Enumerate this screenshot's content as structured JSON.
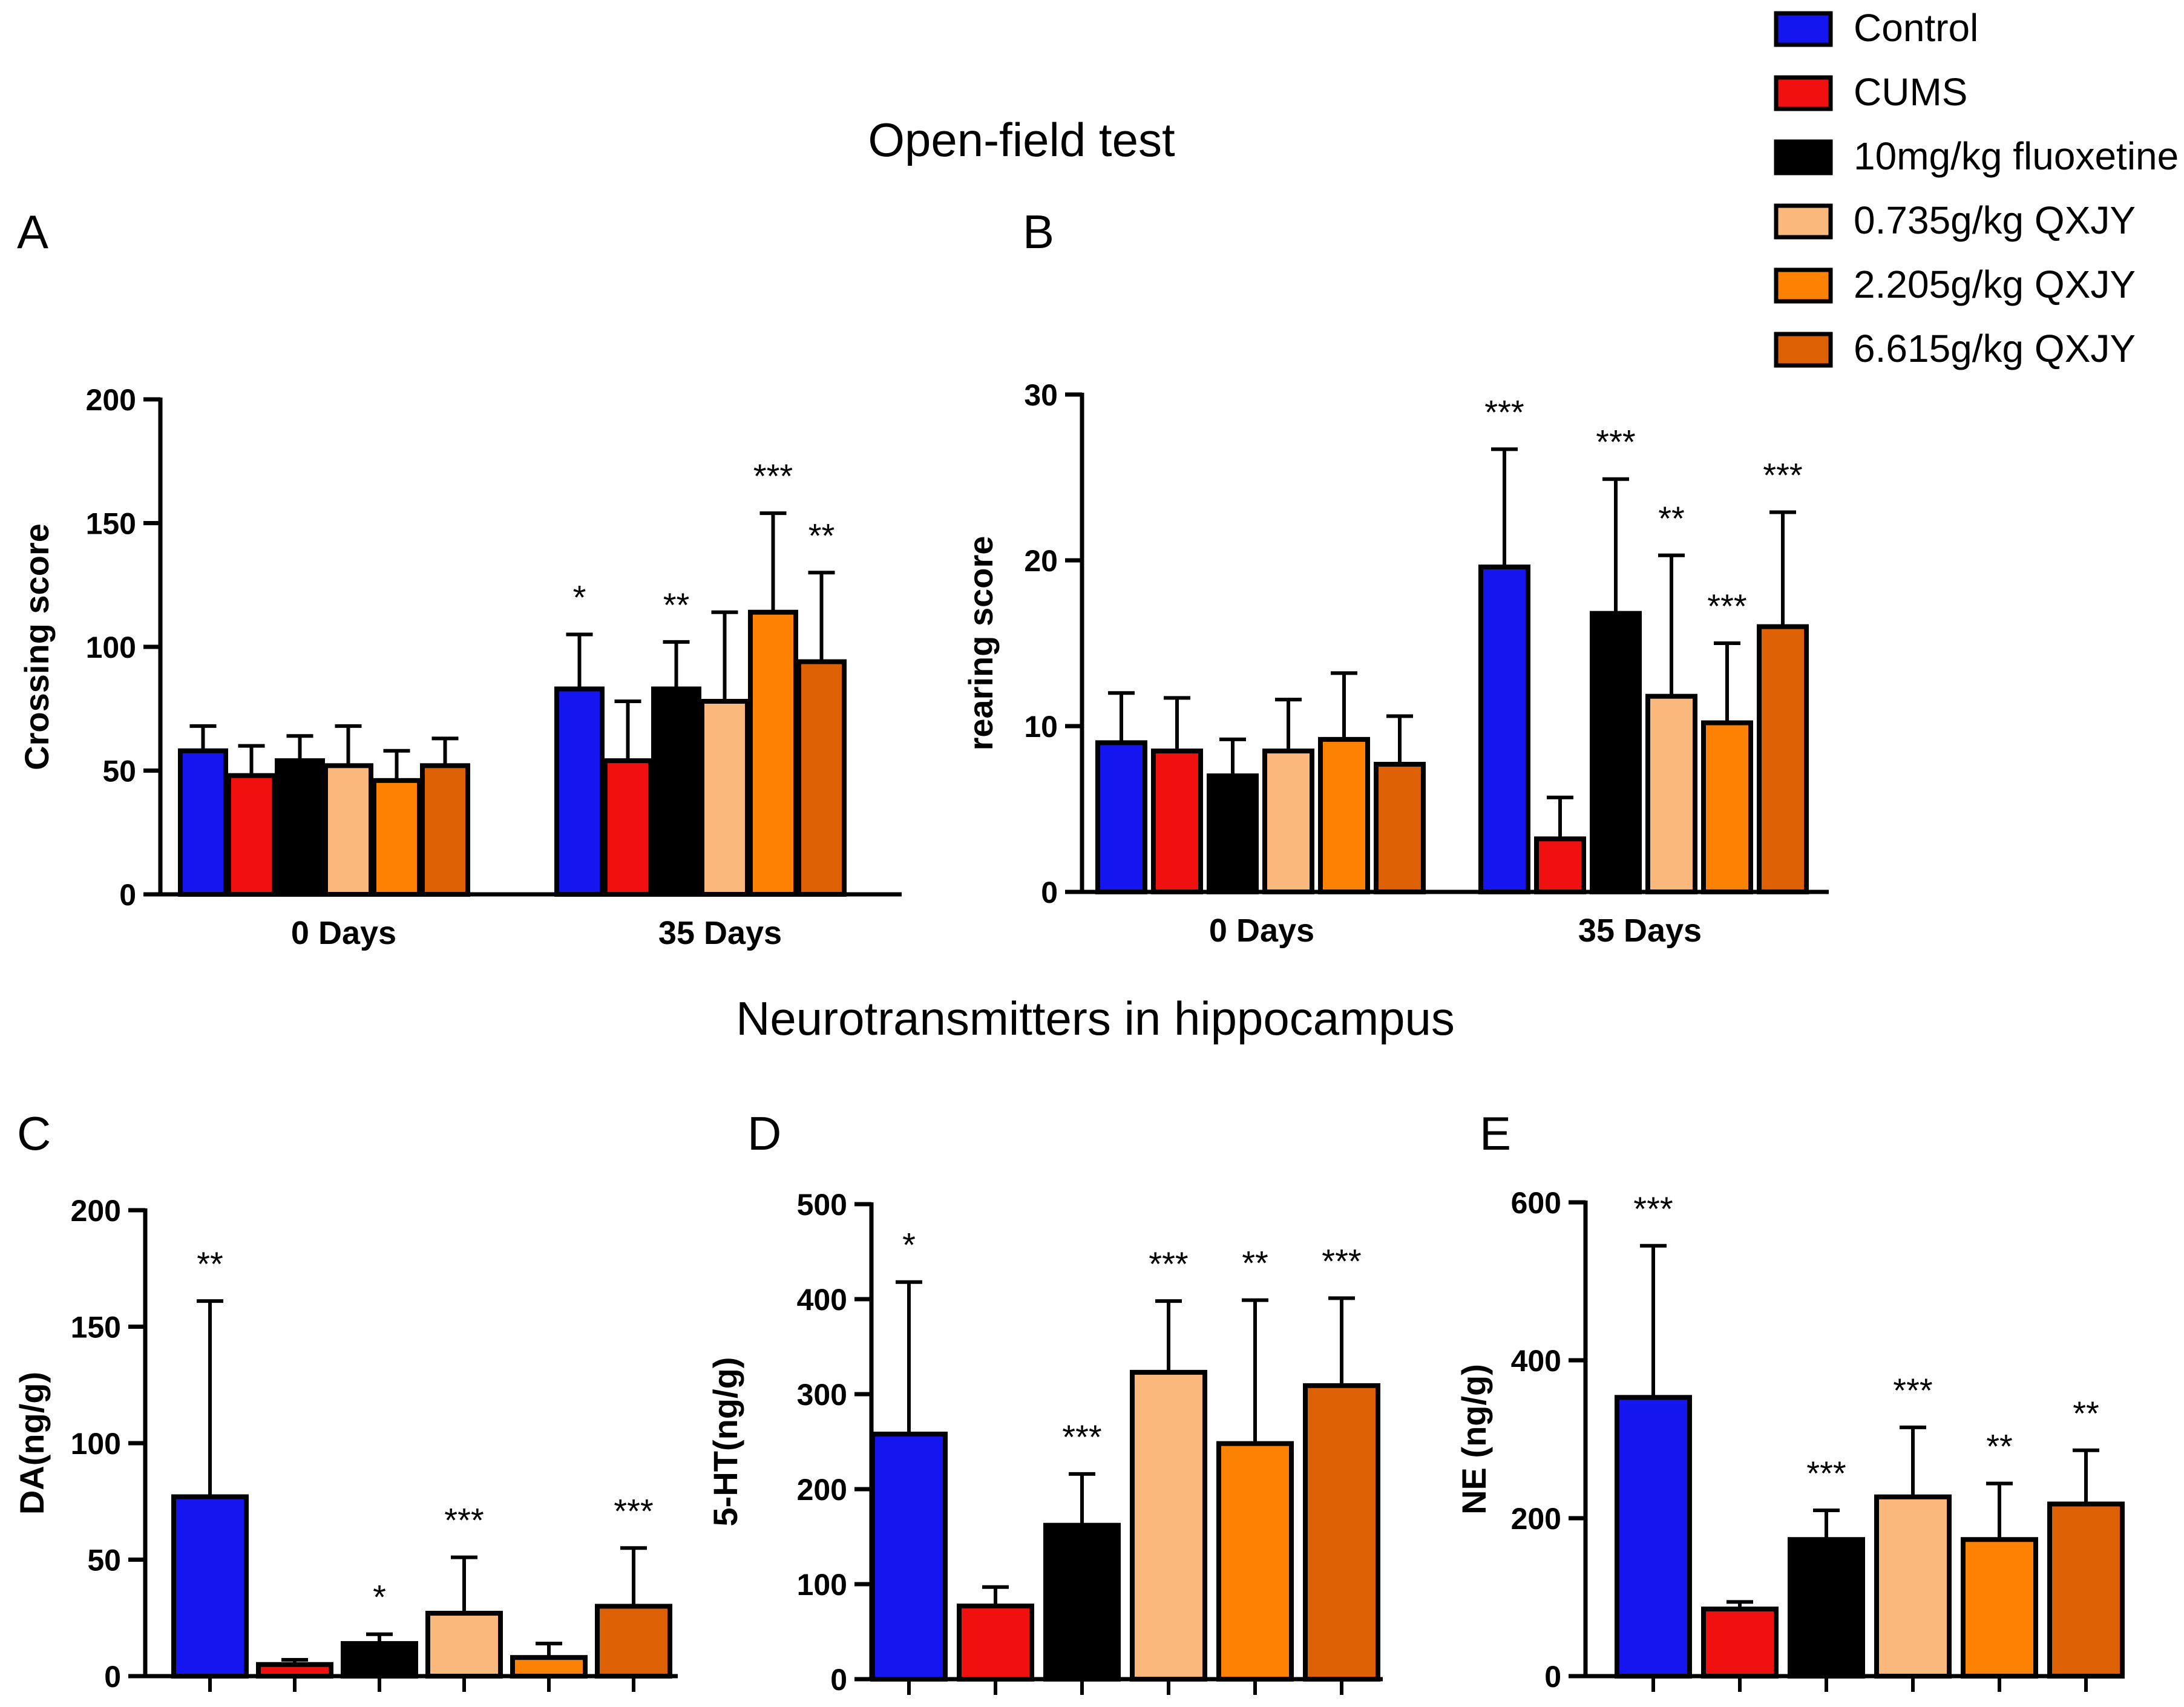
{
  "legend": {
    "entries": [
      {
        "name": "Control",
        "color": "#1515f0"
      },
      {
        "name": "CUMS",
        "color": "#f01010"
      },
      {
        "name": "10mg/kg fluoxetine",
        "color": "#000000"
      },
      {
        "name": "0.735g/kg QXJY",
        "color": "#fbb87c"
      },
      {
        "name": "2.205g/kg QXJY",
        "color": "#fd8204"
      },
      {
        "name": "6.615g/kg QXJY",
        "color": "#dd6004"
      }
    ]
  },
  "headings": {
    "open_field": "Open-field test",
    "neuro": "Neurotransmitters in hippocampus"
  },
  "chart_data": [
    {
      "id": "A",
      "panel_label": "A",
      "type": "bar",
      "ylabel": "Crossing score",
      "ylim": [
        0,
        200
      ],
      "yticks": [
        "0",
        "50",
        "100",
        "150",
        "200"
      ],
      "categories": [
        "0 Days",
        "35 Days"
      ],
      "series": [
        {
          "name": "Control",
          "values": [
            58,
            83
          ],
          "errors": [
            10,
            22
          ],
          "sig": [
            "",
            "*"
          ]
        },
        {
          "name": "CUMS",
          "values": [
            48,
            54
          ],
          "errors": [
            12,
            24
          ],
          "sig": [
            "",
            ""
          ]
        },
        {
          "name": "10mg/kg fluoxetine",
          "values": [
            54,
            83
          ],
          "errors": [
            10,
            19
          ],
          "sig": [
            "",
            "**"
          ]
        },
        {
          "name": "0.735g/kg QXJY",
          "values": [
            52,
            78
          ],
          "errors": [
            16,
            36
          ],
          "sig": [
            "",
            ""
          ]
        },
        {
          "name": "2.205g/kg QXJY",
          "values": [
            46,
            114
          ],
          "errors": [
            12,
            40
          ],
          "sig": [
            "",
            "***"
          ]
        },
        {
          "name": "6.615g/kg QXJY",
          "values": [
            52,
            94
          ],
          "errors": [
            11,
            36
          ],
          "sig": [
            "",
            "**"
          ]
        }
      ]
    },
    {
      "id": "B",
      "panel_label": "B",
      "type": "bar",
      "ylabel": "rearing score",
      "ylim": [
        0,
        30
      ],
      "yticks": [
        "0",
        "10",
        "20",
        "30"
      ],
      "categories": [
        "0 Days",
        "35 Days"
      ],
      "series": [
        {
          "name": "Control",
          "values": [
            9,
            19.6
          ],
          "errors": [
            3,
            7.1
          ],
          "sig": [
            "",
            "***"
          ]
        },
        {
          "name": "CUMS",
          "values": [
            8.5,
            3.2
          ],
          "errors": [
            3.2,
            2.5
          ],
          "sig": [
            "",
            ""
          ]
        },
        {
          "name": "10mg/kg fluoxetine",
          "values": [
            7,
            16.8
          ],
          "errors": [
            2.2,
            8.1
          ],
          "sig": [
            "",
            "***"
          ]
        },
        {
          "name": "0.735g/kg QXJY",
          "values": [
            8.5,
            11.8
          ],
          "errors": [
            3.1,
            8.5
          ],
          "sig": [
            "",
            "**"
          ]
        },
        {
          "name": "2.205g/kg QXJY",
          "values": [
            9.2,
            10.2
          ],
          "errors": [
            4,
            4.8
          ],
          "sig": [
            "",
            "***"
          ]
        },
        {
          "name": "6.615g/kg QXJY",
          "values": [
            7.7,
            16
          ],
          "errors": [
            2.9,
            6.9
          ],
          "sig": [
            "",
            "***"
          ]
        }
      ]
    },
    {
      "id": "C",
      "panel_label": "C",
      "type": "bar",
      "ylabel": "DA(ng/g)",
      "ylim": [
        0,
        200
      ],
      "yticks": [
        "0",
        "50",
        "100",
        "150",
        "200"
      ],
      "categories": [
        "Control",
        "CUMS",
        "10mg/kg fluoxetine",
        "0.735g/kg QXJY",
        "2.205g/kg QXJY",
        "6.615g/kg QXJY"
      ],
      "values": [
        77,
        5,
        14,
        27,
        8,
        30
      ],
      "errors": [
        84,
        2,
        4,
        24,
        6,
        25
      ],
      "sig": [
        "**",
        "",
        "*",
        "***",
        "",
        "***"
      ]
    },
    {
      "id": "D",
      "panel_label": "D",
      "type": "bar",
      "ylabel": "5-HT(ng/g)",
      "ylim": [
        0,
        500
      ],
      "yticks": [
        "0",
        "100",
        "200",
        "300",
        "400",
        "500"
      ],
      "categories": [
        "Control",
        "CUMS",
        "10mg/kg fluoxetine",
        "0.735g/kg QXJY",
        "2.205g/kg QXJY",
        "6.615g/kg QXJY"
      ],
      "values": [
        258,
        77,
        162,
        323,
        248,
        309
      ],
      "errors": [
        160,
        20,
        54,
        75,
        151,
        92
      ],
      "sig": [
        "*",
        "",
        "***",
        "***",
        "**",
        "***"
      ]
    },
    {
      "id": "E",
      "panel_label": "E",
      "type": "bar",
      "ylabel": "NE (ng/g)",
      "ylim": [
        0,
        600
      ],
      "yticks": [
        "0",
        "200",
        "400",
        "600"
      ],
      "categories": [
        "Control",
        "CUMS",
        "10mg/kg fluoxetine",
        "0.735g/kg QXJY",
        "2.205g/kg QXJY",
        "6.615g/kg QXJY"
      ],
      "values": [
        353,
        85,
        173,
        227,
        173,
        218
      ],
      "errors": [
        192,
        9,
        37,
        88,
        71,
        68
      ],
      "sig": [
        "***",
        "",
        "***",
        "***",
        "**",
        "**"
      ]
    }
  ]
}
